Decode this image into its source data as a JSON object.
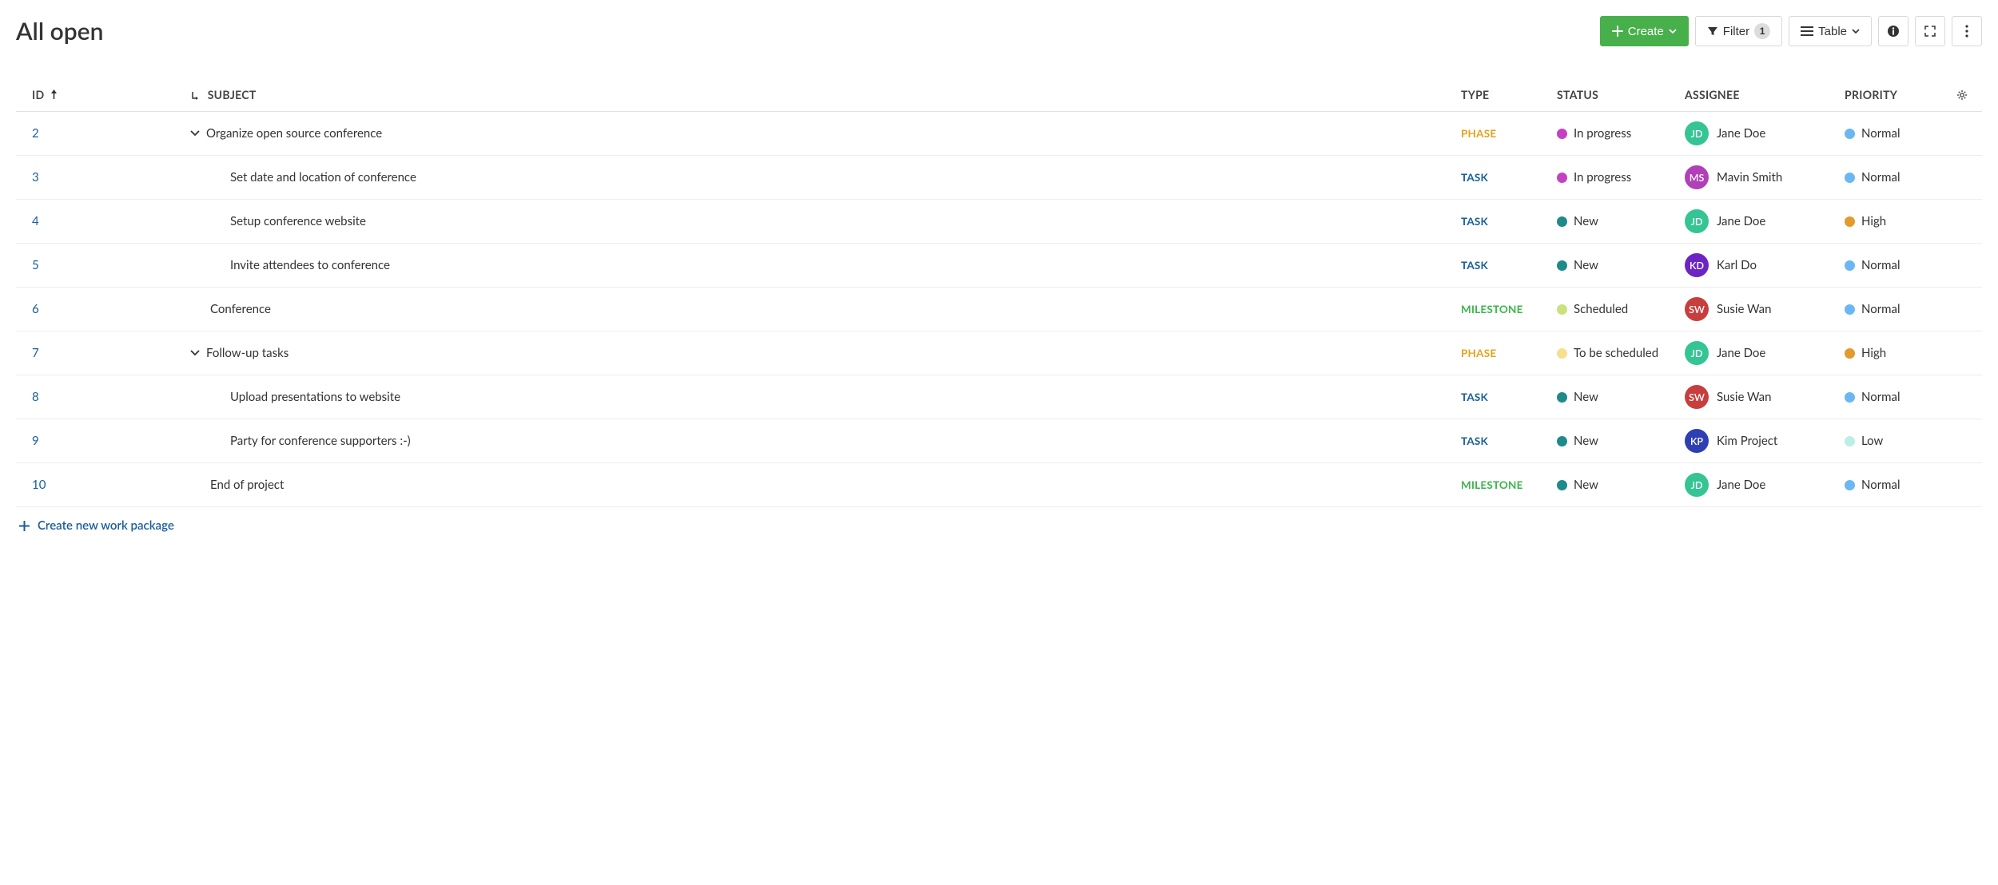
{
  "page": {
    "title": "All open"
  },
  "toolbar": {
    "create_label": "Create",
    "filter_label": "Filter",
    "filter_count": "1",
    "view_label": "Table"
  },
  "columns": {
    "id": "ID",
    "subject": "SUBJECT",
    "type": "TYPE",
    "status": "STATUS",
    "assignee": "ASSIGNEE",
    "priority": "PRIORITY"
  },
  "type_colors": {
    "PHASE": "#e3a21a",
    "TASK": "#1a5e9a",
    "MILESTONE": "#3ab54a"
  },
  "status_colors": {
    "In progress": "#c442c1",
    "New": "#1f8a8a",
    "Scheduled": "#c9e27c",
    "To be scheduled": "#f6e08e"
  },
  "priority_colors": {
    "Normal": "#6bb7f2",
    "High": "#e39a2e",
    "Low": "#bceee3"
  },
  "avatar_colors": {
    "JD": "#35c493",
    "MS": "#b13fb7",
    "KD": "#6c25c2",
    "SW": "#c73e3e",
    "KP": "#2e3fb3"
  },
  "rows": [
    {
      "id": "2",
      "subject": "Organize open source conference",
      "indent": 0,
      "expandable": true,
      "type": "PHASE",
      "status": "In progress",
      "assignee": {
        "initials": "JD",
        "name": "Jane Doe"
      },
      "priority": "Normal"
    },
    {
      "id": "3",
      "subject": "Set date and location of conference",
      "indent": 1,
      "expandable": false,
      "type": "TASK",
      "status": "In progress",
      "assignee": {
        "initials": "MS",
        "name": "Mavin Smith"
      },
      "priority": "Normal"
    },
    {
      "id": "4",
      "subject": "Setup conference website",
      "indent": 1,
      "expandable": false,
      "type": "TASK",
      "status": "New",
      "assignee": {
        "initials": "JD",
        "name": "Jane Doe"
      },
      "priority": "High"
    },
    {
      "id": "5",
      "subject": "Invite attendees to conference",
      "indent": 1,
      "expandable": false,
      "type": "TASK",
      "status": "New",
      "assignee": {
        "initials": "KD",
        "name": "Karl Do"
      },
      "priority": "Normal"
    },
    {
      "id": "6",
      "subject": "Conference",
      "indent": 0,
      "expandable": false,
      "type": "MILESTONE",
      "status": "Scheduled",
      "assignee": {
        "initials": "SW",
        "name": "Susie Wan"
      },
      "priority": "Normal"
    },
    {
      "id": "7",
      "subject": "Follow-up tasks",
      "indent": 0,
      "expandable": true,
      "type": "PHASE",
      "status": "To be scheduled",
      "assignee": {
        "initials": "JD",
        "name": "Jane Doe"
      },
      "priority": "High"
    },
    {
      "id": "8",
      "subject": "Upload presentations to website",
      "indent": 1,
      "expandable": false,
      "type": "TASK",
      "status": "New",
      "assignee": {
        "initials": "SW",
        "name": "Susie Wan"
      },
      "priority": "Normal"
    },
    {
      "id": "9",
      "subject": "Party for conference supporters :-)",
      "indent": 1,
      "expandable": false,
      "type": "TASK",
      "status": "New",
      "assignee": {
        "initials": "KP",
        "name": "Kim Project"
      },
      "priority": "Low"
    },
    {
      "id": "10",
      "subject": "End of project",
      "indent": 0,
      "expandable": false,
      "type": "MILESTONE",
      "status": "New",
      "assignee": {
        "initials": "JD",
        "name": "Jane Doe"
      },
      "priority": "Normal"
    }
  ],
  "footer": {
    "create_label": "Create new work package"
  }
}
